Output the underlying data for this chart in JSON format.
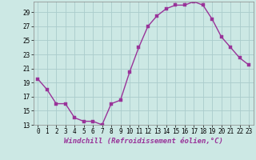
{
  "x": [
    0,
    1,
    2,
    3,
    4,
    5,
    6,
    7,
    8,
    9,
    10,
    11,
    12,
    13,
    14,
    15,
    16,
    17,
    18,
    19,
    20,
    21,
    22,
    23
  ],
  "y": [
    19.5,
    18.0,
    16.0,
    16.0,
    14.0,
    13.5,
    13.5,
    13.0,
    16.0,
    16.5,
    20.5,
    24.0,
    27.0,
    28.5,
    29.5,
    30.0,
    30.0,
    30.5,
    30.0,
    28.0,
    25.5,
    24.0,
    22.5,
    21.5
  ],
  "bg_color": "#cce8e4",
  "grid_color": "#aacccc",
  "line_color": "#993399",
  "marker_color": "#993399",
  "xlabel": "Windchill (Refroidissement éolien,°C)",
  "ylim": [
    13,
    30.5
  ],
  "xlim": [
    -0.5,
    23.5
  ],
  "yticks": [
    13,
    15,
    17,
    19,
    21,
    23,
    25,
    27,
    29
  ],
  "xticks": [
    0,
    1,
    2,
    3,
    4,
    5,
    6,
    7,
    8,
    9,
    10,
    11,
    12,
    13,
    14,
    15,
    16,
    17,
    18,
    19,
    20,
    21,
    22,
    23
  ],
  "xlabel_fontsize": 6.5,
  "tick_fontsize": 5.5,
  "line_width": 1.0,
  "marker_size": 2.5
}
